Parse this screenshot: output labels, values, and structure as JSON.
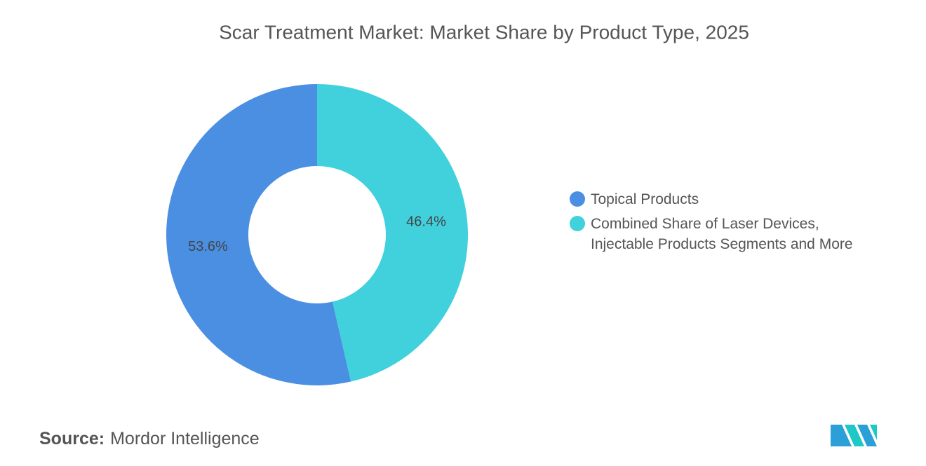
{
  "chart_data": {
    "type": "pie",
    "title": "Scar Treatment Market: Market Share by Product Type, 2025",
    "categories": [
      "Topical Products",
      "Combined Share of Laser Devices, Injectable Products Segments and More"
    ],
    "values": [
      53.6,
      46.4
    ],
    "value_labels": [
      "53.6%",
      "46.4%"
    ],
    "colors": [
      "#4a8fe2",
      "#41d1dc"
    ],
    "source_label": "Source:",
    "source": "Mordor Intelligence"
  }
}
